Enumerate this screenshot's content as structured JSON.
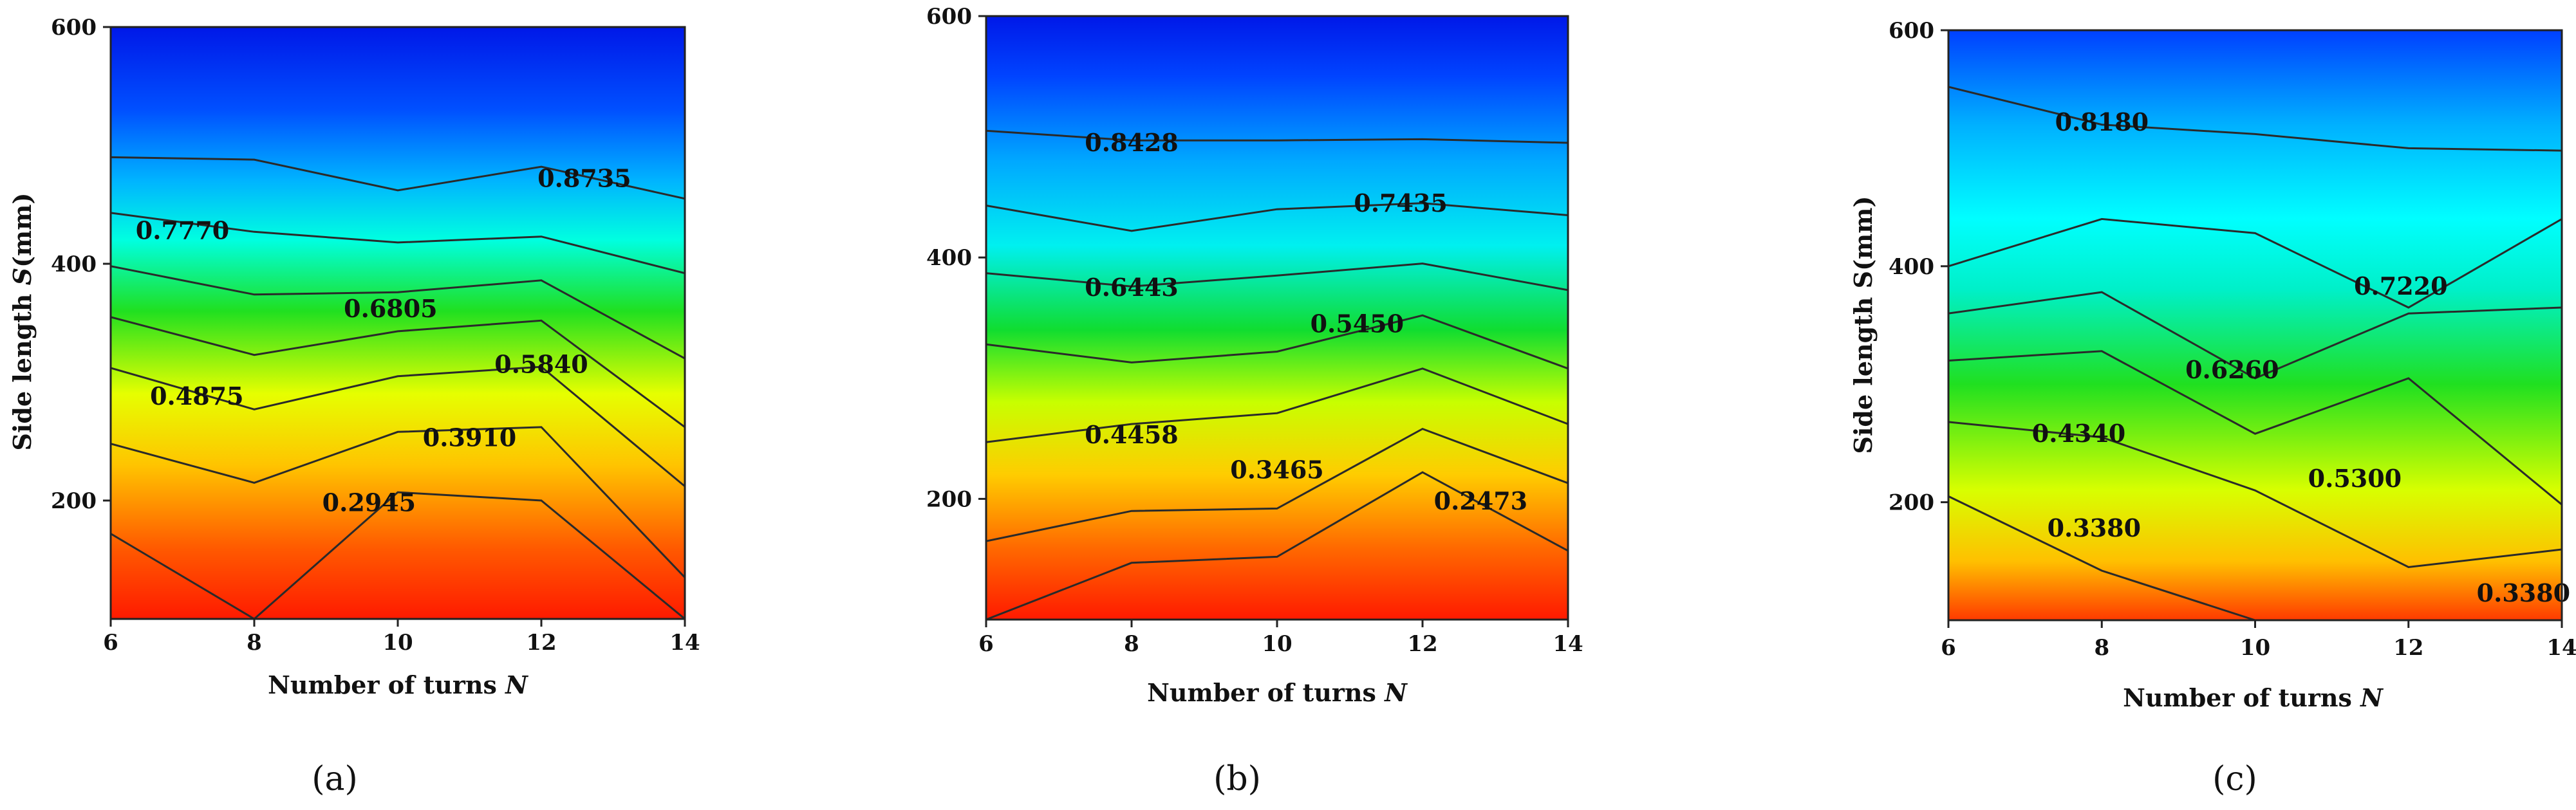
{
  "chart_data": [
    {
      "type": "contour",
      "caption": "(a)",
      "xlabel": "Number of turns ",
      "xlabel_var": "N",
      "ylabel": "Side length ",
      "ylabel_var": "S",
      "ylabel_unit": "(mm)",
      "xlim": [
        6,
        14
      ],
      "ylim": [
        100,
        600
      ],
      "xticks": [
        "6",
        "8",
        "10",
        "12",
        "14"
      ],
      "yticks": [
        "200",
        "400",
        "600"
      ],
      "x": [
        6,
        8,
        10,
        12,
        14
      ],
      "contours": [
        {
          "level": "",
          "y": [
            490,
            488,
            462,
            482,
            455
          ],
          "label_at": null
        },
        {
          "level": "0.8735",
          "y": [
            443,
            427,
            418,
            423,
            392
          ],
          "label_at": [
            12.6,
            472
          ]
        },
        {
          "level": "0.7770",
          "y": [
            398,
            374,
            376,
            386,
            320
          ],
          "label_at": [
            7.0,
            428
          ]
        },
        {
          "level": "0.6805",
          "y": [
            355,
            323,
            343,
            352,
            262
          ],
          "label_at": [
            9.9,
            362
          ]
        },
        {
          "level": "0.5840",
          "y": [
            312,
            277,
            305,
            313,
            212
          ],
          "label_at": [
            12.0,
            315
          ]
        },
        {
          "level": "0.4875",
          "y": [
            248,
            215,
            258,
            262,
            135
          ],
          "label_at": [
            7.2,
            288
          ]
        },
        {
          "level": "0.3910",
          "y": [
            172,
            100,
            207,
            200,
            100
          ],
          "label_at": [
            11.0,
            253
          ]
        },
        {
          "level": "0.2945",
          "y": [
            null,
            null,
            null,
            null,
            null
          ],
          "label_at": [
            9.6,
            198
          ]
        }
      ]
    },
    {
      "type": "contour",
      "caption": "(b)",
      "xlabel": "Number of turns ",
      "xlabel_var": "N",
      "ylabel": "",
      "xlim": [
        6,
        14
      ],
      "ylim": [
        100,
        600
      ],
      "xticks": [
        "6",
        "8",
        "10",
        "12",
        "14"
      ],
      "yticks": [
        "200",
        "400",
        "600"
      ],
      "x": [
        6,
        8,
        10,
        12,
        14
      ],
      "contours": [
        {
          "level": "0.8428",
          "y": [
            505,
            497,
            497,
            498,
            495
          ],
          "label_at": [
            8.0,
            495
          ]
        },
        {
          "level": "0.7435",
          "y": [
            443,
            422,
            440,
            445,
            435
          ],
          "label_at": [
            11.7,
            445
          ]
        },
        {
          "level": "0.6443",
          "y": [
            387,
            376,
            385,
            395,
            373
          ],
          "label_at": [
            8.0,
            375
          ]
        },
        {
          "level": "0.5450",
          "y": [
            328,
            313,
            322,
            352,
            308
          ],
          "label_at": [
            11.1,
            345
          ]
        },
        {
          "level": "0.4458",
          "y": [
            247,
            262,
            271,
            308,
            262
          ],
          "label_at": [
            8.0,
            253
          ]
        },
        {
          "level": "0.3465",
          "y": [
            165,
            190,
            192,
            258,
            213
          ],
          "label_at": [
            10.0,
            224
          ]
        },
        {
          "level": "0.2473",
          "y": [
            100,
            147,
            152,
            222,
            157
          ],
          "label_at": [
            12.8,
            198
          ]
        }
      ]
    },
    {
      "type": "contour",
      "caption": "(c)",
      "xlabel": "Number of turns ",
      "xlabel_var": "N",
      "ylabel": "Side length ",
      "ylabel_var": "",
      "ylabel_unit": "S(mm)",
      "xlim": [
        6,
        14
      ],
      "ylim": [
        100,
        600
      ],
      "xticks": [
        "6",
        "8",
        "10",
        "12",
        "14"
      ],
      "yticks": [
        "200",
        "400",
        "600"
      ],
      "x": [
        6,
        8,
        10,
        12,
        14
      ],
      "contours": [
        {
          "level": "0.8180",
          "y": [
            552,
            520,
            512,
            500,
            498
          ],
          "label_at": [
            8.0,
            522
          ]
        },
        {
          "level": "0.7220",
          "y": [
            400,
            440,
            428,
            365,
            440
          ],
          "label_at": [
            11.9,
            383
          ]
        },
        {
          "level": "0.6260",
          "y": [
            360,
            378,
            305,
            360,
            365
          ],
          "label_at": [
            9.7,
            312
          ]
        },
        {
          "level": "0.5300",
          "y": [
            320,
            328,
            258,
            305,
            198
          ],
          "label_at": [
            11.3,
            220
          ]
        },
        {
          "level": "0.4340",
          "y": [
            268,
            255,
            210,
            145,
            160
          ],
          "label_at": [
            7.7,
            258
          ]
        },
        {
          "level": "0.3380",
          "y": [
            205,
            142,
            100,
            100,
            100
          ],
          "label_at": [
            7.9,
            178
          ]
        },
        {
          "level": "0.3380",
          "y": [
            null,
            null,
            null,
            null,
            null
          ],
          "label_at": [
            13.5,
            123
          ]
        }
      ]
    }
  ]
}
